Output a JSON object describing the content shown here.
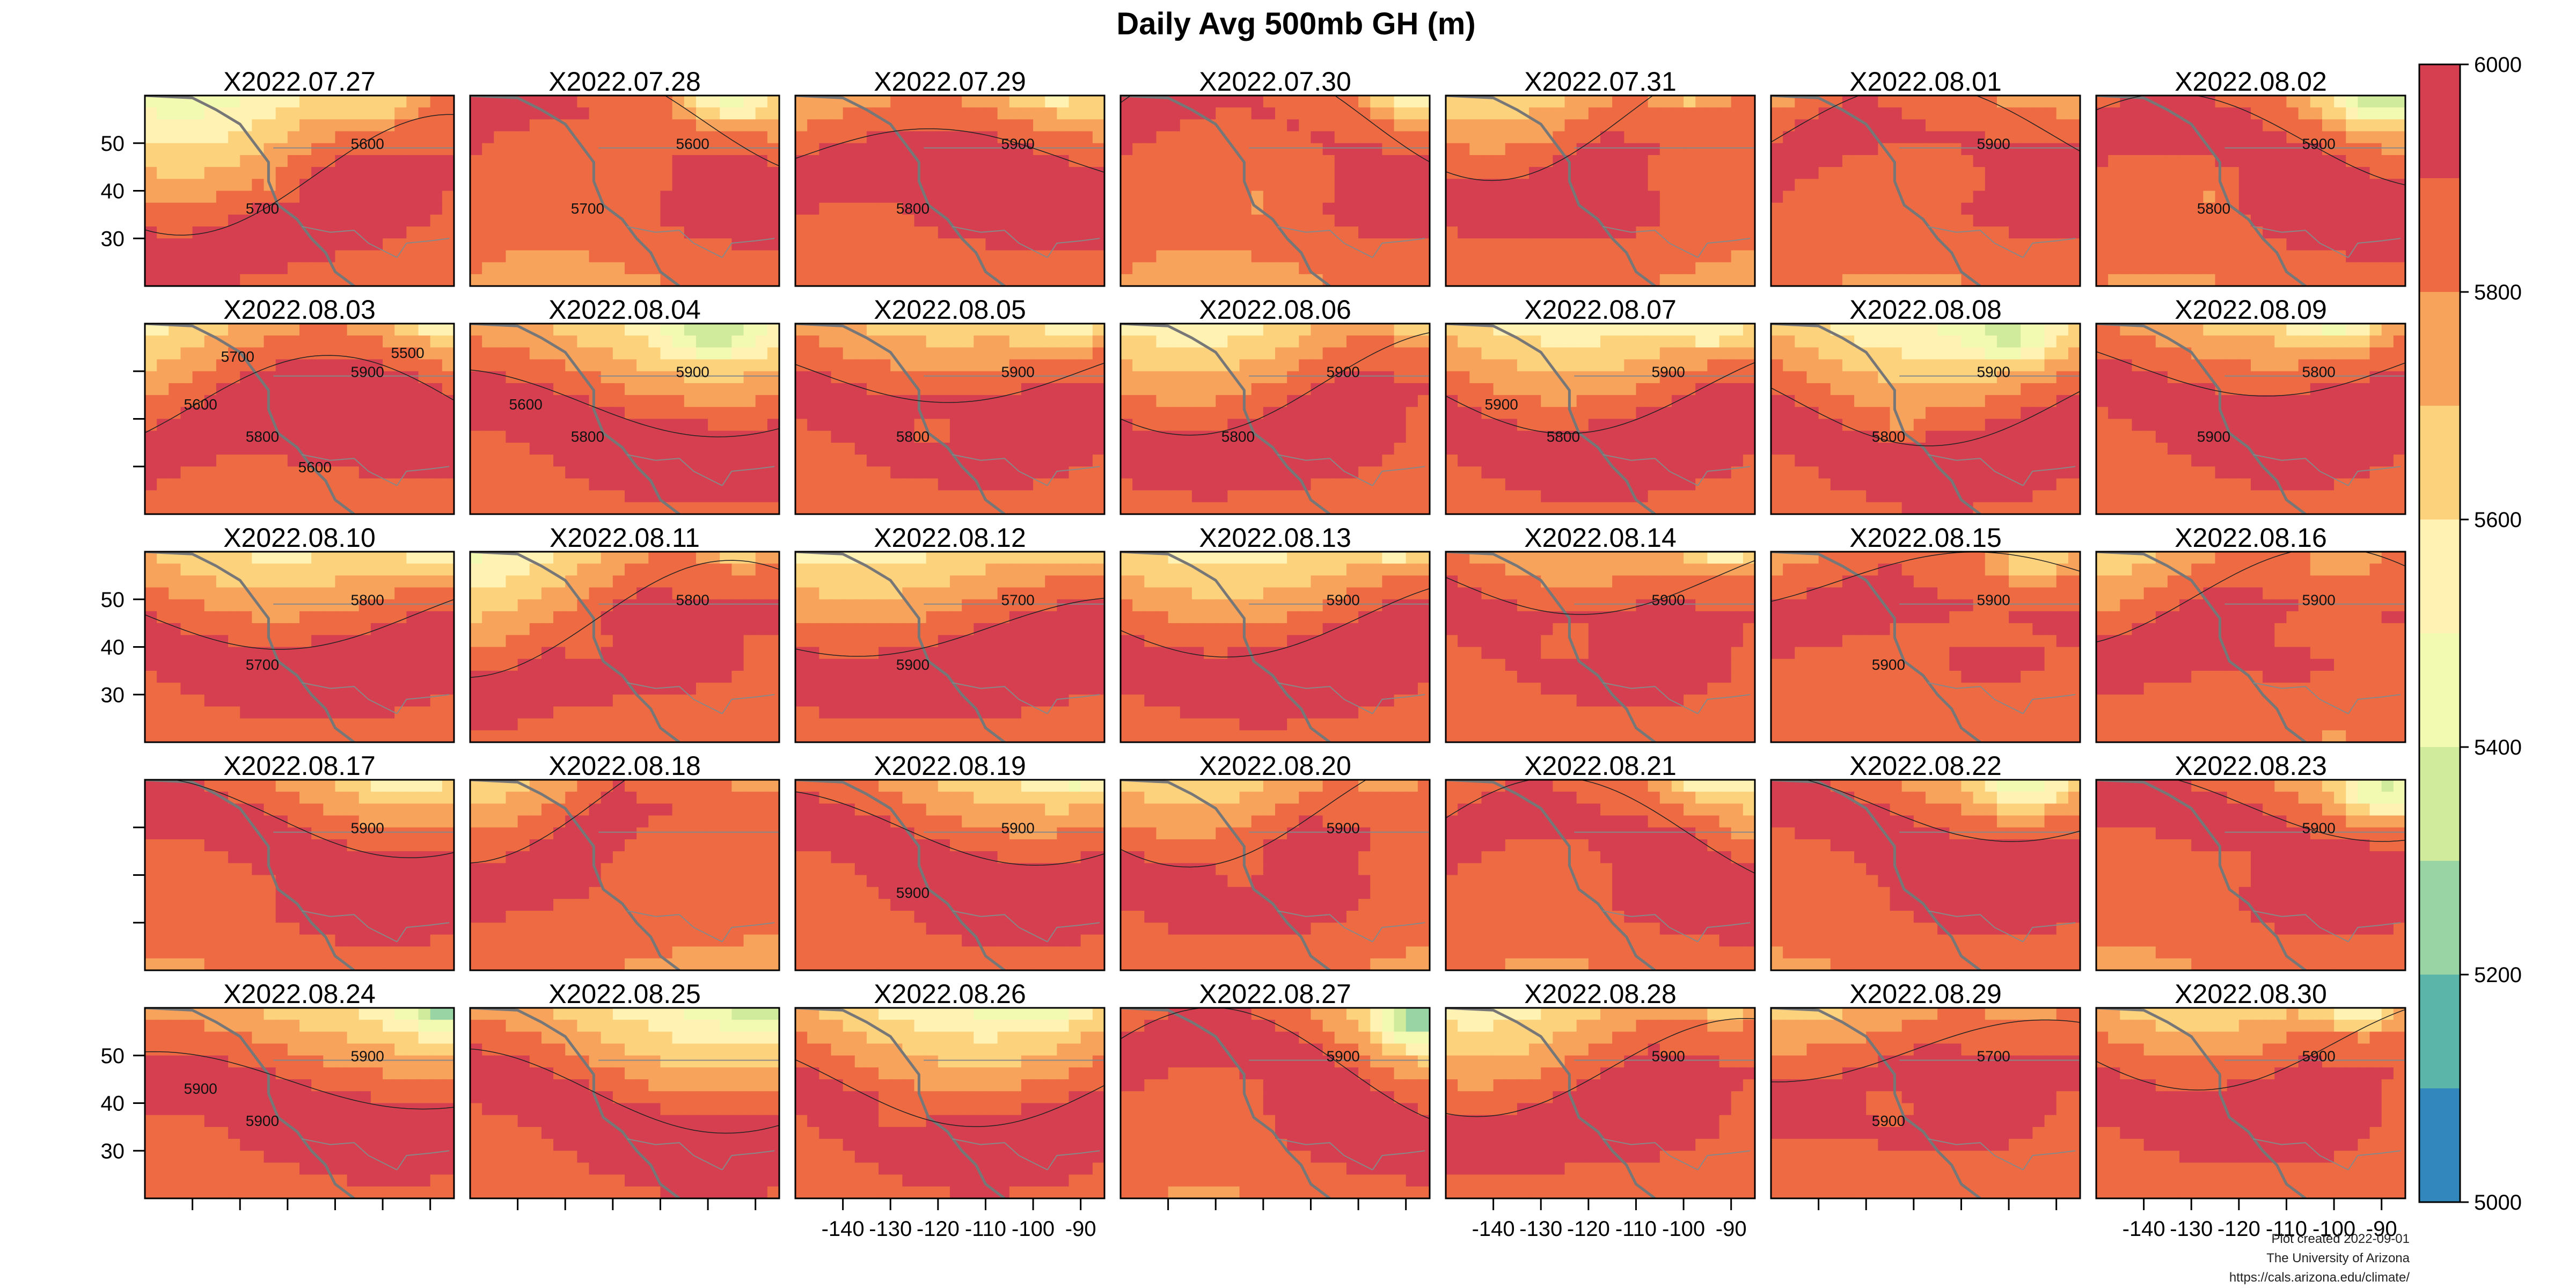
{
  "chart_data": {
    "type": "heatmap",
    "title": "Daily Avg 500mb GH (m)",
    "panels": [
      {
        "label": "X2022.07.27",
        "contour_labels": [
          "5600",
          "5700"
        ]
      },
      {
        "label": "X2022.07.28",
        "contour_labels": [
          "5600",
          "5700"
        ]
      },
      {
        "label": "X2022.07.29",
        "contour_labels": [
          "5900",
          "5800"
        ]
      },
      {
        "label": "X2022.07.30",
        "contour_labels": []
      },
      {
        "label": "X2022.07.31",
        "contour_labels": []
      },
      {
        "label": "X2022.08.01",
        "contour_labels": [
          "5900"
        ]
      },
      {
        "label": "X2022.08.02",
        "contour_labels": [
          "5900",
          "5800"
        ]
      },
      {
        "label": "X2022.08.03",
        "contour_labels": [
          "5900",
          "5800",
          "5600",
          "5500",
          "5600",
          "5700"
        ]
      },
      {
        "label": "X2022.08.04",
        "contour_labels": [
          "5900",
          "5800",
          "5600"
        ]
      },
      {
        "label": "X2022.08.05",
        "contour_labels": [
          "5900",
          "5800"
        ]
      },
      {
        "label": "X2022.08.06",
        "contour_labels": [
          "5900",
          "5800"
        ]
      },
      {
        "label": "X2022.08.07",
        "contour_labels": [
          "5900",
          "5800",
          "5900"
        ]
      },
      {
        "label": "X2022.08.08",
        "contour_labels": [
          "5900",
          "5800"
        ]
      },
      {
        "label": "X2022.08.09",
        "contour_labels": [
          "5800",
          "5900"
        ]
      },
      {
        "label": "X2022.08.10",
        "contour_labels": [
          "5800",
          "5700"
        ]
      },
      {
        "label": "X2022.08.11",
        "contour_labels": [
          "5800"
        ]
      },
      {
        "label": "X2022.08.12",
        "contour_labels": [
          "5700",
          "5900"
        ]
      },
      {
        "label": "X2022.08.13",
        "contour_labels": [
          "5900"
        ]
      },
      {
        "label": "X2022.08.14",
        "contour_labels": [
          "5900"
        ]
      },
      {
        "label": "X2022.08.15",
        "contour_labels": [
          "5900",
          "5900"
        ]
      },
      {
        "label": "X2022.08.16",
        "contour_labels": [
          "5900"
        ]
      },
      {
        "label": "X2022.08.17",
        "contour_labels": [
          "5900"
        ]
      },
      {
        "label": "X2022.08.18",
        "contour_labels": []
      },
      {
        "label": "X2022.08.19",
        "contour_labels": [
          "5900",
          "5900"
        ]
      },
      {
        "label": "X2022.08.20",
        "contour_labels": [
          "5900"
        ]
      },
      {
        "label": "X2022.08.21",
        "contour_labels": []
      },
      {
        "label": "X2022.08.22",
        "contour_labels": []
      },
      {
        "label": "X2022.08.23",
        "contour_labels": [
          "5900"
        ]
      },
      {
        "label": "X2022.08.24",
        "contour_labels": [
          "5900",
          "5900",
          "5900"
        ]
      },
      {
        "label": "X2022.08.25",
        "contour_labels": []
      },
      {
        "label": "X2022.08.26",
        "contour_labels": []
      },
      {
        "label": "X2022.08.27",
        "contour_labels": [
          "5900"
        ]
      },
      {
        "label": "X2022.08.28",
        "contour_labels": [
          "5900"
        ]
      },
      {
        "label": "X2022.08.29",
        "contour_labels": [
          "5700",
          "5900"
        ]
      },
      {
        "label": "X2022.08.30",
        "contour_labels": [
          "5900"
        ]
      }
    ],
    "x_ticks": [
      "-140",
      "-130",
      "-120",
      "-110",
      "-100",
      "-90"
    ],
    "y_ticks": [
      "30",
      "40",
      "50"
    ],
    "colorbar": {
      "range": [
        5000,
        6000
      ],
      "tick_labels": [
        "5000",
        "5200",
        "5400",
        "5600",
        "5800",
        "6000"
      ],
      "bins": [
        {
          "lo": 5000,
          "hi": 5100,
          "color": "#3288bd"
        },
        {
          "lo": 5100,
          "hi": 5200,
          "color": "#5bb5a9"
        },
        {
          "lo": 5200,
          "hi": 5300,
          "color": "#99d5a4"
        },
        {
          "lo": 5300,
          "hi": 5400,
          "color": "#d1eb9c"
        },
        {
          "lo": 5400,
          "hi": 5500,
          "color": "#f2f9b1"
        },
        {
          "lo": 5500,
          "hi": 5600,
          "color": "#fff2b2"
        },
        {
          "lo": 5600,
          "hi": 5700,
          "color": "#fdd27d"
        },
        {
          "lo": 5700,
          "hi": 5800,
          "color": "#f8a35c"
        },
        {
          "lo": 5800,
          "hi": 5900,
          "color": "#ed6a43"
        },
        {
          "lo": 5900,
          "hi": 6000,
          "color": "#d53f4f"
        }
      ]
    },
    "credits": [
      "Plot created 2022-09-01",
      "The University of Arizona",
      "https://cals.arizona.edu/climate/"
    ]
  }
}
